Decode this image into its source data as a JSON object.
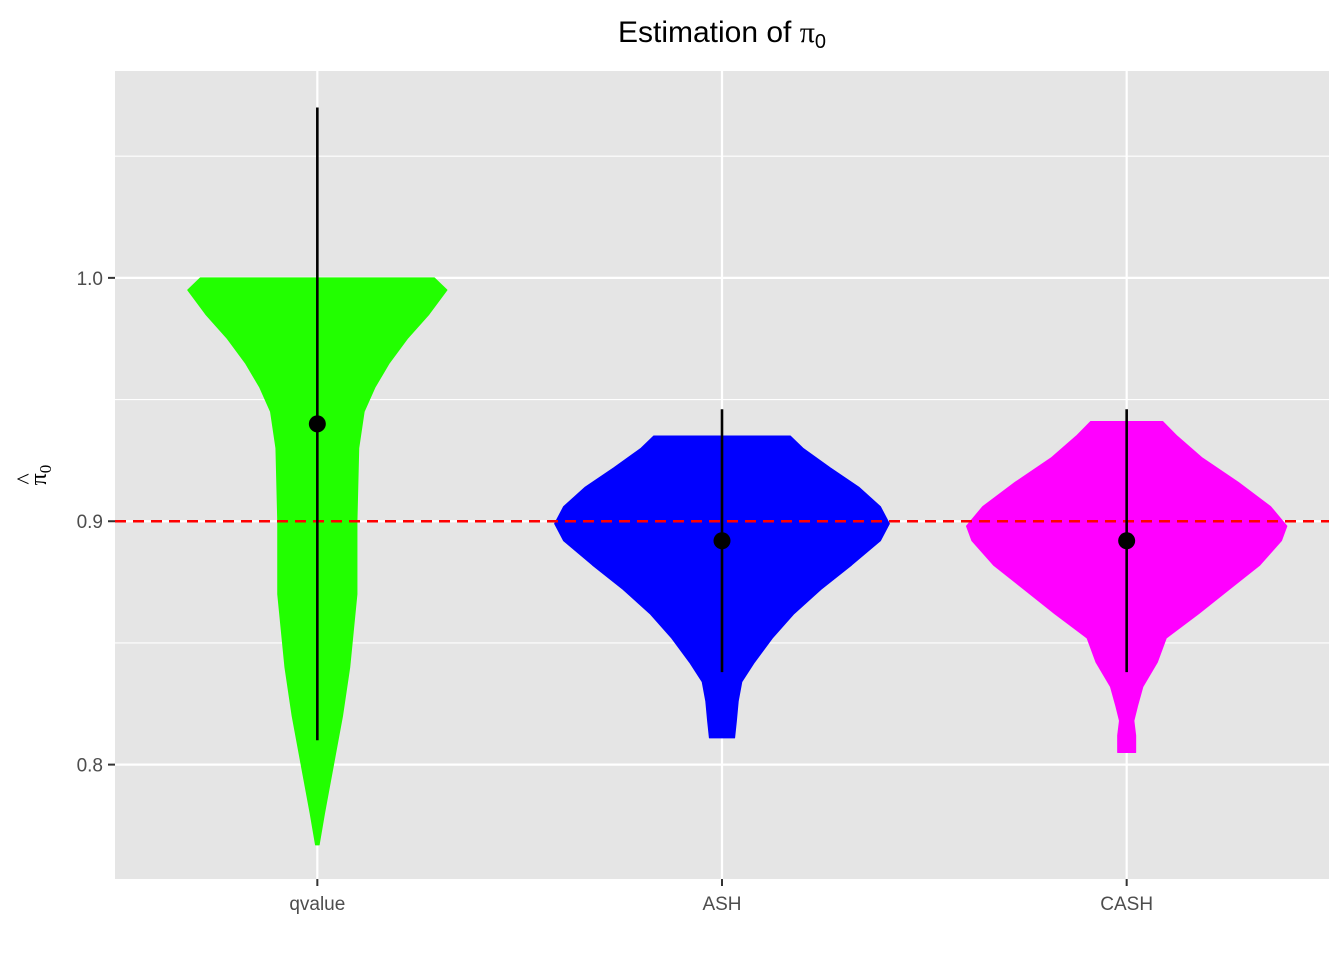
{
  "chart_data": {
    "type": "violin",
    "title": "Estimation of π₀",
    "title_main": "Estimation of ",
    "title_symbol": "π",
    "title_subscript": "0",
    "ylabel_hat": "^",
    "ylabel_symbol": "π",
    "ylabel_subscript": "0",
    "xlabel": "",
    "categories": [
      "qvalue",
      "ASH",
      "CASH"
    ],
    "ylim": [
      0.753,
      1.085
    ],
    "yticks": [
      0.8,
      0.9,
      1.0
    ],
    "ytick_labels": [
      "0.8",
      "0.9",
      "1.0"
    ],
    "yminor": [
      0.85,
      0.95,
      1.05
    ],
    "grid": true,
    "reference_line": {
      "y": 0.9,
      "color": "#ff0000",
      "style": "dashed"
    },
    "series": [
      {
        "category": "qvalue",
        "color": "#22ff00",
        "mean": 0.94,
        "error_low": 0.81,
        "error_high": 1.07,
        "violin_min": 0.767,
        "violin_max": 1.0,
        "density_profile": [
          [
            0.767,
            0.01
          ],
          [
            0.78,
            0.04
          ],
          [
            0.8,
            0.09
          ],
          [
            0.82,
            0.14
          ],
          [
            0.84,
            0.18
          ],
          [
            0.855,
            0.2
          ],
          [
            0.87,
            0.22
          ],
          [
            0.9,
            0.22
          ],
          [
            0.93,
            0.23
          ],
          [
            0.945,
            0.26
          ],
          [
            0.955,
            0.32
          ],
          [
            0.965,
            0.4
          ],
          [
            0.975,
            0.5
          ],
          [
            0.985,
            0.62
          ],
          [
            0.995,
            0.72
          ],
          [
            1.0,
            0.65
          ]
        ]
      },
      {
        "category": "ASH",
        "color": "#0000ff",
        "mean": 0.892,
        "error_low": 0.838,
        "error_high": 0.946,
        "violin_min": 0.811,
        "violin_max": 0.935,
        "density_profile": [
          [
            0.811,
            0.07
          ],
          [
            0.818,
            0.08
          ],
          [
            0.826,
            0.09
          ],
          [
            0.834,
            0.11
          ],
          [
            0.842,
            0.18
          ],
          [
            0.852,
            0.28
          ],
          [
            0.862,
            0.4
          ],
          [
            0.872,
            0.55
          ],
          [
            0.882,
            0.72
          ],
          [
            0.892,
            0.88
          ],
          [
            0.899,
            0.93
          ],
          [
            0.906,
            0.88
          ],
          [
            0.914,
            0.76
          ],
          [
            0.922,
            0.6
          ],
          [
            0.93,
            0.45
          ],
          [
            0.935,
            0.38
          ]
        ]
      },
      {
        "category": "CASH",
        "color": "#ff00ff",
        "mean": 0.892,
        "error_low": 0.838,
        "error_high": 0.946,
        "violin_min": 0.805,
        "violin_max": 0.941,
        "density_profile": [
          [
            0.805,
            0.05
          ],
          [
            0.812,
            0.05
          ],
          [
            0.818,
            0.04
          ],
          [
            0.824,
            0.06
          ],
          [
            0.832,
            0.09
          ],
          [
            0.842,
            0.17
          ],
          [
            0.852,
            0.22
          ],
          [
            0.862,
            0.4
          ],
          [
            0.872,
            0.57
          ],
          [
            0.882,
            0.74
          ],
          [
            0.892,
            0.86
          ],
          [
            0.898,
            0.89
          ],
          [
            0.906,
            0.8
          ],
          [
            0.916,
            0.62
          ],
          [
            0.926,
            0.42
          ],
          [
            0.935,
            0.28
          ],
          [
            0.941,
            0.2
          ]
        ]
      }
    ]
  }
}
